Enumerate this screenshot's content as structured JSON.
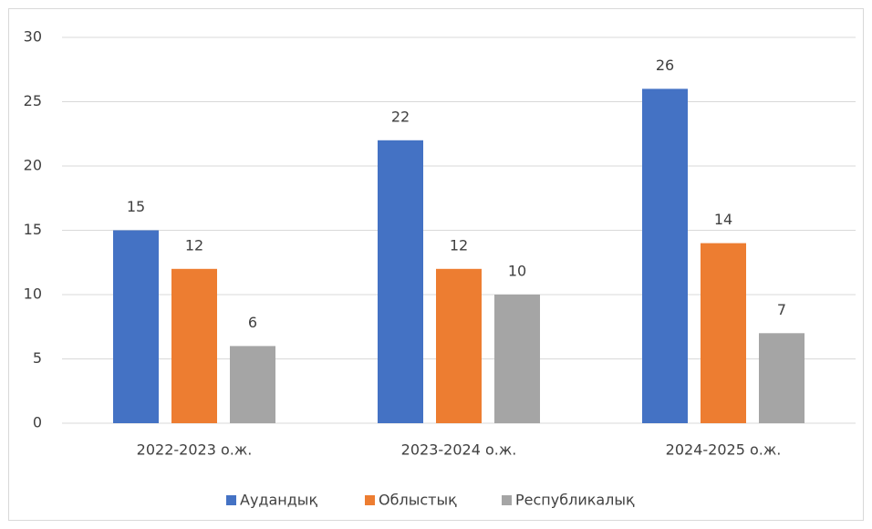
{
  "chart_data": {
    "type": "bar",
    "categories": [
      "2022-2023 о.ж.",
      "2023-2024 о.ж.",
      "2024-2025 о.ж."
    ],
    "series": [
      {
        "name": "Аудандық",
        "color": "#4472c4",
        "values": [
          15,
          22,
          26
        ]
      },
      {
        "name": "Облыстық",
        "color": "#ed7d31",
        "values": [
          12,
          12,
          14
        ]
      },
      {
        "name": "Республикалық",
        "color": "#a5a5a5",
        "values": [
          6,
          10,
          7
        ]
      }
    ],
    "ylim": [
      0,
      30
    ],
    "yticks": [
      0,
      5,
      10,
      15,
      20,
      25,
      30
    ],
    "grid": true,
    "legend": "bottom"
  }
}
